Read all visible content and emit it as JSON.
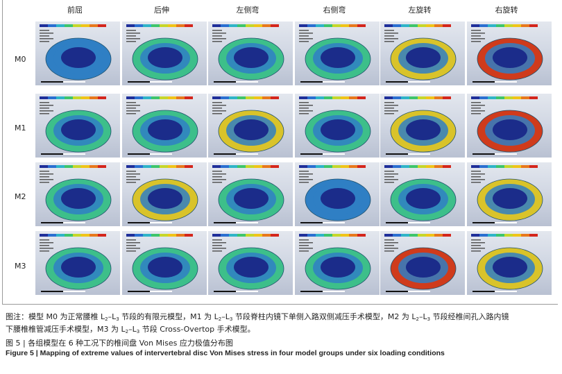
{
  "columns": [
    "前屈",
    "后伸",
    "左侧弯",
    "右侧弯",
    "左旋转",
    "右旋转"
  ],
  "rows": [
    "M0",
    "M1",
    "M2",
    "M3"
  ],
  "caption": {
    "line1_a": "图注：模型 M0 为正常腰椎 L",
    "line1_b": " 节段的有限元模型，M1 为 L",
    "line1_c": " 节段脊柱内镜下单侧入路双侧减压手术模型，M2 为 L",
    "line1_d": " 节段经椎间孔入路内镜",
    "line2_a": "下腰椎椎管减压手术模型，M3 为 L",
    "line2_b": " 节段 Cross-Overtop 手术模型。",
    "sub_a": "2",
    "dash": "–L",
    "sub_b": "3"
  },
  "figure_title_cn": "图 5  | 各组模型在 6 种工况下的椎间盘 Von Mises 应力极值分布图",
  "figure_title_en": "Figure 5  |  Mapping of extreme values of intervertebral disc Von Mises stress in four model groups under six loading conditions",
  "colors": {
    "legend": [
      "#1f2f9a",
      "#2a6fd1",
      "#2fb4c8",
      "#3ec56b",
      "#c6d72a",
      "#f0c419",
      "#e8781c",
      "#d4261c"
    ],
    "core": "#1b2c8a",
    "ring_low": "#2f7fc4",
    "ring_mid": "#3dbf8a",
    "ring_high": "#d9c32a",
    "ring_max": "#cf3b1c"
  }
}
